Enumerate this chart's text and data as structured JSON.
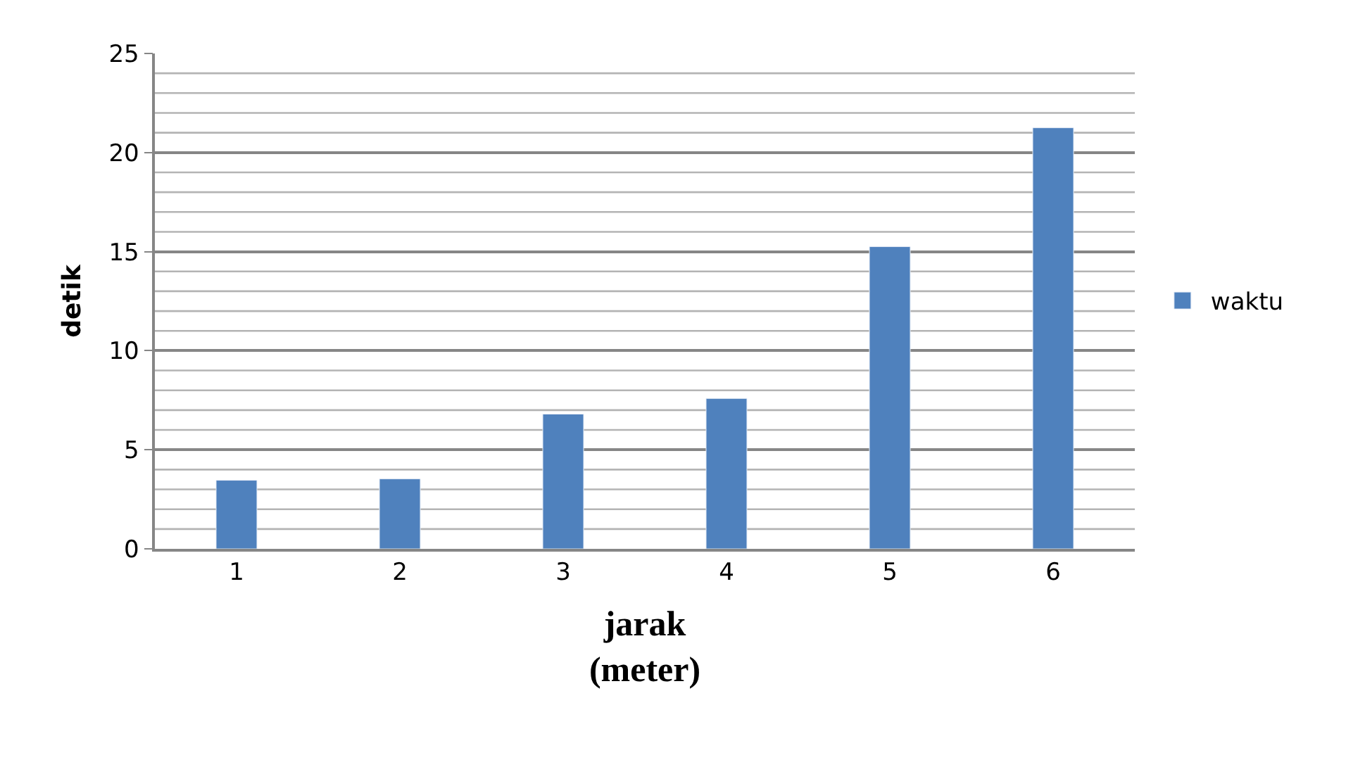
{
  "chart_data": {
    "type": "bar",
    "categories": [
      "1",
      "2",
      "3",
      "4",
      "5",
      "6"
    ],
    "series": [
      {
        "name": "waktu",
        "color": "#4f81bd",
        "values": [
          3.46,
          3.53,
          6.8,
          7.59,
          15.25,
          21.25
        ]
      }
    ],
    "xlabel": "jarak\n(meter)",
    "ylabel": "detik",
    "ylim": [
      0,
      25
    ],
    "yticks": [
      0,
      {
        "value": 1,
        "label": null
      },
      {
        "value": 2,
        "label": null
      },
      {
        "value": 3,
        "label": null
      },
      {
        "value": 4,
        "label": null
      },
      5,
      {
        "value": 6,
        "label": null
      },
      {
        "value": 7,
        "label": null
      },
      {
        "value": 8,
        "label": null
      },
      {
        "value": 9,
        "label": null
      },
      10,
      {
        "value": 11,
        "label": null
      },
      {
        "value": 12,
        "label": null
      },
      {
        "value": 13,
        "label": null
      },
      {
        "value": 14,
        "label": null
      },
      15,
      {
        "value": 16,
        "label": null
      },
      {
        "value": 17,
        "label": null
      },
      {
        "value": 18,
        "label": null
      },
      {
        "value": 19,
        "label": null
      },
      20,
      {
        "value": 21,
        "label": null
      },
      {
        "value": 22,
        "label": null
      },
      {
        "value": 23,
        "label": null
      },
      {
        "value": 24,
        "label": null
      },
      25
    ],
    "grid": "y",
    "legend": "right"
  }
}
